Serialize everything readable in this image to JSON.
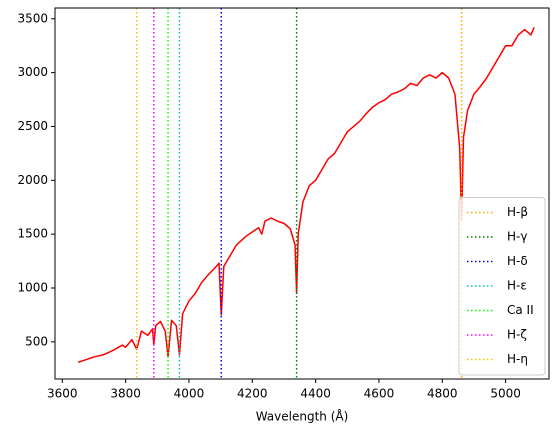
{
  "chart_data": {
    "type": "line",
    "xlabel": "Wavelength (Å)",
    "xlim": [
      3577,
      5137
    ],
    "ylim": [
      155,
      3600
    ],
    "xticks": [
      3600,
      3800,
      4000,
      4200,
      4400,
      4600,
      4800,
      5000
    ],
    "yticks": [
      500,
      1000,
      1500,
      2000,
      2500,
      3000,
      3500
    ],
    "legend": "lower right",
    "series": [
      {
        "color": "#ff0000",
        "x": [
          3650,
          3670,
          3700,
          3730,
          3760,
          3790,
          3800,
          3820,
          3835,
          3850,
          3870,
          3885,
          3889,
          3895,
          3910,
          3925,
          3934,
          3945,
          3960,
          3970,
          3980,
          4000,
          4020,
          4040,
          4060,
          4080,
          4095,
          4102,
          4110,
          4130,
          4150,
          4180,
          4200,
          4220,
          4230,
          4240,
          4260,
          4280,
          4300,
          4320,
          4335,
          4340,
          4345,
          4360,
          4380,
          4400,
          4420,
          4440,
          4460,
          4480,
          4500,
          4520,
          4540,
          4560,
          4580,
          4600,
          4620,
          4640,
          4660,
          4680,
          4700,
          4720,
          4740,
          4760,
          4780,
          4800,
          4820,
          4840,
          4855,
          4861,
          4867,
          4880,
          4900,
          4920,
          4940,
          4960,
          4980,
          5000,
          5020,
          5040,
          5060,
          5080,
          5090
        ],
        "values": [
          310,
          330,
          360,
          380,
          420,
          470,
          450,
          520,
          430,
          600,
          560,
          620,
          470,
          650,
          690,
          600,
          360,
          700,
          650,
          380,
          760,
          880,
          950,
          1050,
          1120,
          1180,
          1230,
          750,
          1200,
          1300,
          1400,
          1480,
          1520,
          1560,
          1500,
          1620,
          1650,
          1620,
          1600,
          1550,
          1400,
          950,
          1500,
          1800,
          1950,
          2000,
          2100,
          2200,
          2250,
          2350,
          2450,
          2500,
          2550,
          2620,
          2680,
          2720,
          2750,
          2800,
          2820,
          2850,
          2900,
          2880,
          2950,
          2980,
          2950,
          3000,
          2950,
          2800,
          2300,
          1630,
          2400,
          2650,
          2800,
          2870,
          2950,
          3050,
          3150,
          3250,
          3250,
          3350,
          3400,
          3350,
          3420
        ]
      }
    ],
    "lines": [
      {
        "name": "H-β",
        "color": "#ffa500",
        "x": 4861
      },
      {
        "name": "H-γ",
        "color": "#008000",
        "x": 4340
      },
      {
        "name": "H-δ",
        "color": "#0000ff",
        "x": 4102
      },
      {
        "name": "H-ε",
        "color": "#00bfbf",
        "x": 3970
      },
      {
        "name": "Ca II",
        "color": "#00ff00",
        "x": 3934
      },
      {
        "name": "H-ζ",
        "color": "#ff00ff",
        "x": 3889
      },
      {
        "name": "H-η",
        "color": "#ffbf00",
        "x": 3835
      }
    ]
  }
}
